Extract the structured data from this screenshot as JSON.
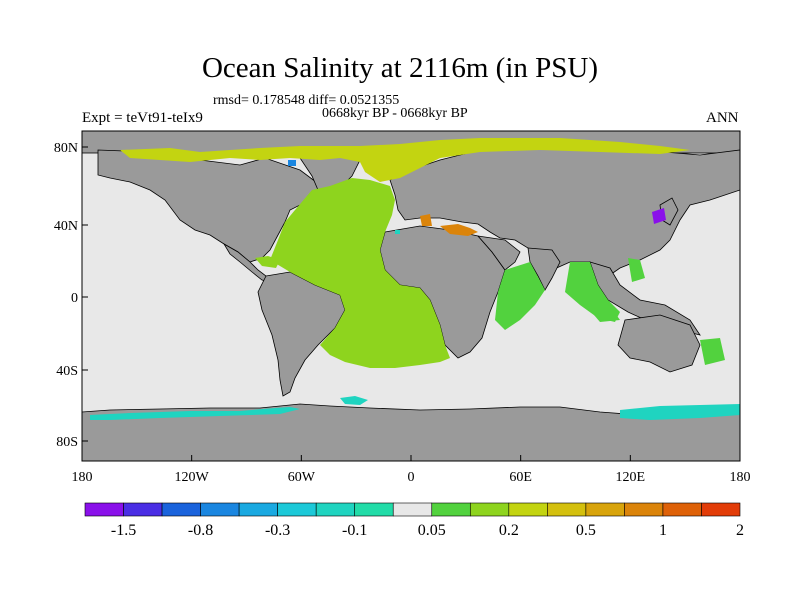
{
  "title": "Ocean Salinity at 2116m (in PSU)",
  "stats_line": "rmsd= 0.178548 diff= 0.0521355",
  "period_line": "0668kyr BP - 0668kyr BP",
  "experiment": "Expt = teVt91-teIx9",
  "season": "ANN",
  "axes": {
    "lat_ticks": [
      "80N",
      "40N",
      "0",
      "40S",
      "80S"
    ],
    "lon_ticks": [
      "180",
      "120W",
      "60W",
      "0",
      "60E",
      "120E",
      "180"
    ]
  },
  "colorbar": {
    "colors": [
      "#8a10ea",
      "#4a2ee4",
      "#1a63dc",
      "#1a86e0",
      "#1aa9e1",
      "#1cc9d8",
      "#1fd4c0",
      "#22dca8",
      "#e8e8e8",
      "#52d23e",
      "#8ed41e",
      "#c3d411",
      "#d4c00e",
      "#d8a40c",
      "#db840a",
      "#de6108",
      "#e23c08"
    ],
    "labels": [
      "-1.5",
      "-0.8",
      "-0.3",
      "-0.1",
      "0.05",
      "0.2",
      "0.5",
      "1",
      "2"
    ]
  },
  "map_colors": {
    "land": "#9a9a9a",
    "ocean_neutral": "#e8e8e8",
    "atlantic": "#8ed41e",
    "weak_positive": "#52d23e",
    "arctic": "#c3d411",
    "southern": "#1fd4c0",
    "mediterranean": "#db840a",
    "japan_sea": "#8a10ea"
  }
}
